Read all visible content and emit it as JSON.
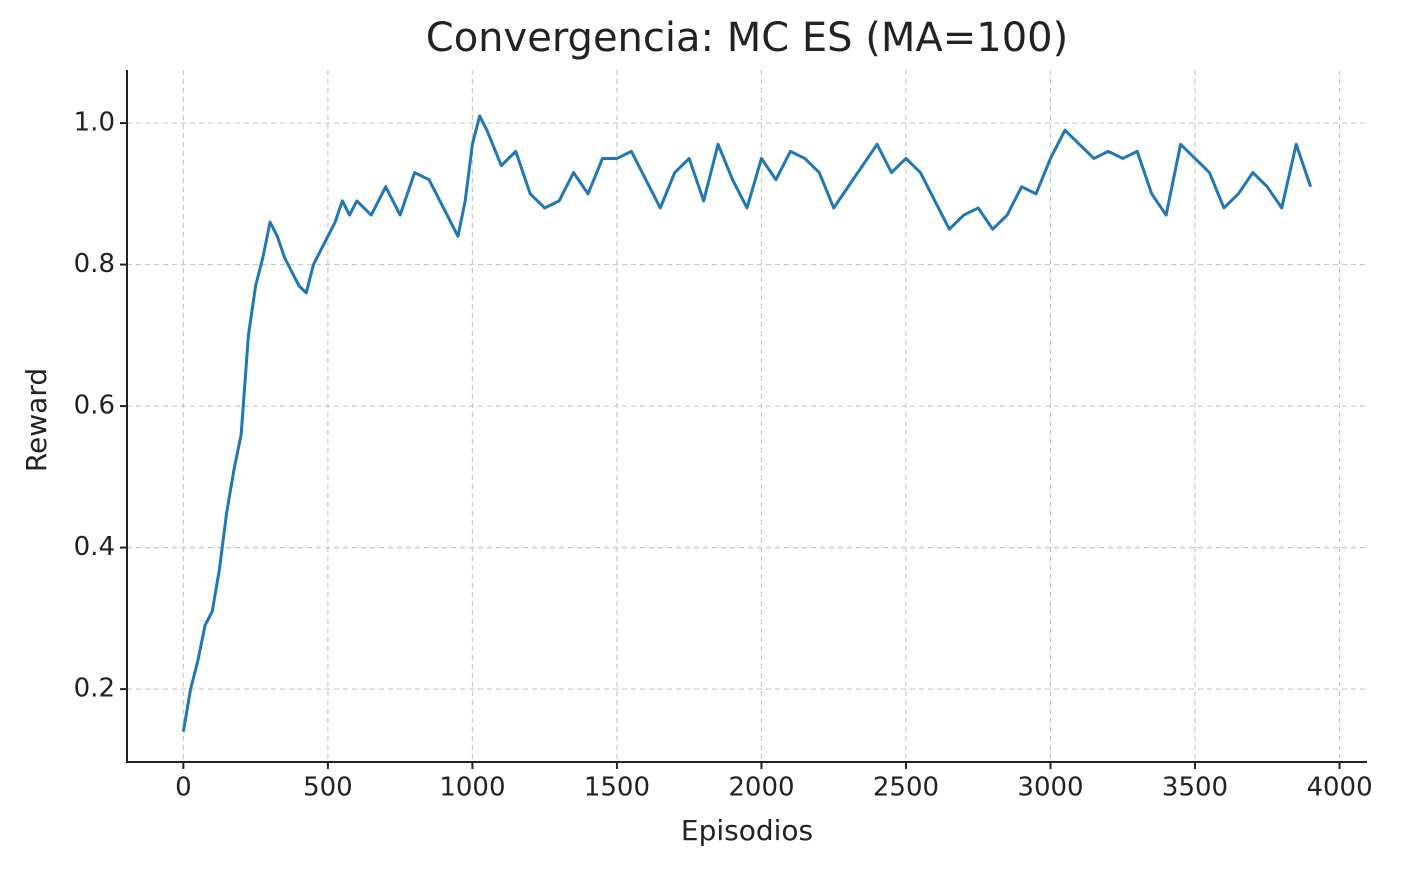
{
  "chart_data": {
    "type": "line",
    "title": "Convergencia: MC ES (MA=100)",
    "xlabel": "Episodios",
    "ylabel": "Reward",
    "grid": true,
    "xlim": [
      -195,
      4095
    ],
    "ylim": [
      0.097,
      1.075
    ],
    "xticks": [
      0,
      500,
      1000,
      1500,
      2000,
      2500,
      3000,
      3500,
      4000
    ],
    "yticks": [
      0.2,
      0.4,
      0.6,
      0.8,
      {
        "value": 1.0,
        "label": "1.0"
      }
    ],
    "series": [
      {
        "name": "MA=100",
        "color": "#1f77b4",
        "x": [
          0,
          25,
          50,
          75,
          100,
          125,
          150,
          175,
          200,
          225,
          250,
          275,
          300,
          325,
          350,
          375,
          400,
          425,
          450,
          475,
          500,
          525,
          550,
          575,
          600,
          650,
          700,
          750,
          800,
          850,
          900,
          950,
          975,
          1000,
          1025,
          1050,
          1100,
          1150,
          1200,
          1250,
          1300,
          1350,
          1400,
          1450,
          1500,
          1550,
          1600,
          1650,
          1700,
          1750,
          1800,
          1850,
          1900,
          1950,
          2000,
          2050,
          2100,
          2150,
          2200,
          2250,
          2300,
          2350,
          2400,
          2450,
          2500,
          2550,
          2600,
          2650,
          2700,
          2750,
          2800,
          2850,
          2900,
          2950,
          3000,
          3050,
          3100,
          3150,
          3200,
          3250,
          3300,
          3350,
          3400,
          3450,
          3500,
          3550,
          3600,
          3650,
          3700,
          3750,
          3800,
          3850,
          3900
        ],
        "values": [
          0.14,
          0.2,
          0.24,
          0.29,
          0.31,
          0.37,
          0.45,
          0.51,
          0.56,
          0.7,
          0.77,
          0.81,
          0.86,
          0.84,
          0.81,
          0.79,
          0.77,
          0.76,
          0.8,
          0.82,
          0.84,
          0.86,
          0.89,
          0.87,
          0.89,
          0.87,
          0.91,
          0.87,
          0.93,
          0.92,
          0.88,
          0.84,
          0.89,
          0.97,
          1.01,
          0.99,
          0.94,
          0.96,
          0.9,
          0.88,
          0.89,
          0.93,
          0.9,
          0.95,
          0.95,
          0.96,
          0.92,
          0.88,
          0.93,
          0.95,
          0.89,
          0.97,
          0.92,
          0.88,
          0.95,
          0.92,
          0.96,
          0.95,
          0.93,
          0.88,
          0.91,
          0.94,
          0.97,
          0.93,
          0.95,
          0.93,
          0.89,
          0.85,
          0.87,
          0.88,
          0.85,
          0.87,
          0.91,
          0.9,
          0.95,
          0.99,
          0.97,
          0.95,
          0.96,
          0.95,
          0.96,
          0.9,
          0.87,
          0.97,
          0.95,
          0.93,
          0.88,
          0.9,
          0.93,
          0.91,
          0.88,
          0.97,
          0.91
        ]
      }
    ]
  }
}
